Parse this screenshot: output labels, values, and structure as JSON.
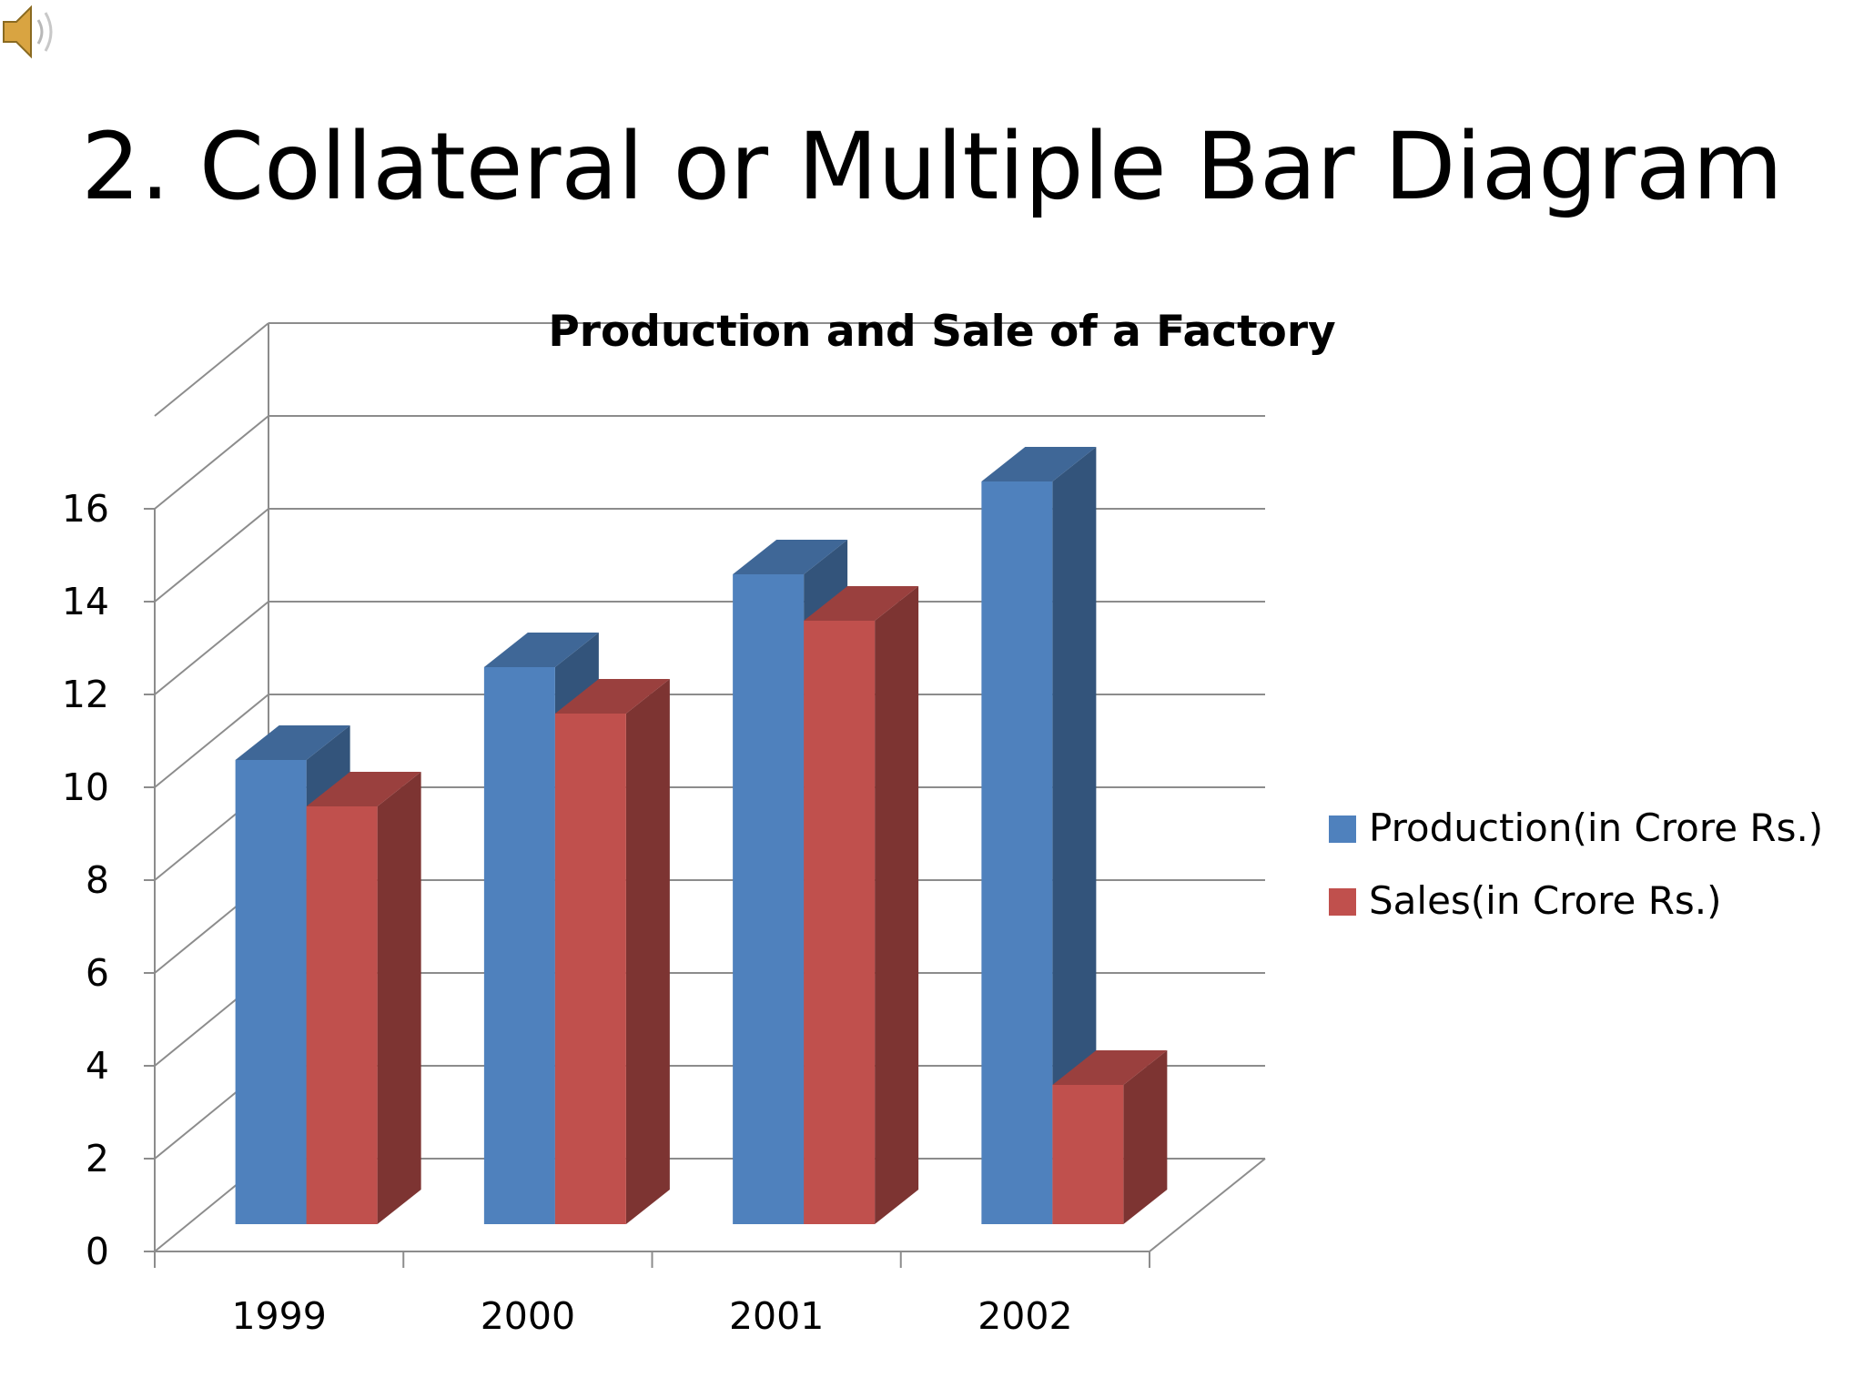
{
  "slide": {
    "title": "2. Collateral or Multiple Bar Diagram",
    "speaker_icon": "speaker-icon"
  },
  "chart_data": {
    "type": "bar",
    "title": "Production and Sale of a Factory",
    "categories": [
      "1999",
      "2000",
      "2001",
      "2002"
    ],
    "series": [
      {
        "name": "Production(in Crore Rs.)",
        "values": [
          10,
          12,
          14,
          16
        ],
        "color": "#4F81BD"
      },
      {
        "name": "Sales(in Crore Rs.)",
        "values": [
          9,
          11,
          13,
          3
        ],
        "color": "#C0504D"
      }
    ],
    "ylim": [
      0,
      16
    ],
    "yticks": [
      0,
      2,
      4,
      6,
      8,
      10,
      12,
      14,
      16
    ],
    "xlabel": "",
    "ylabel": "",
    "grid": true,
    "legend": "right",
    "style": "3d-column"
  }
}
